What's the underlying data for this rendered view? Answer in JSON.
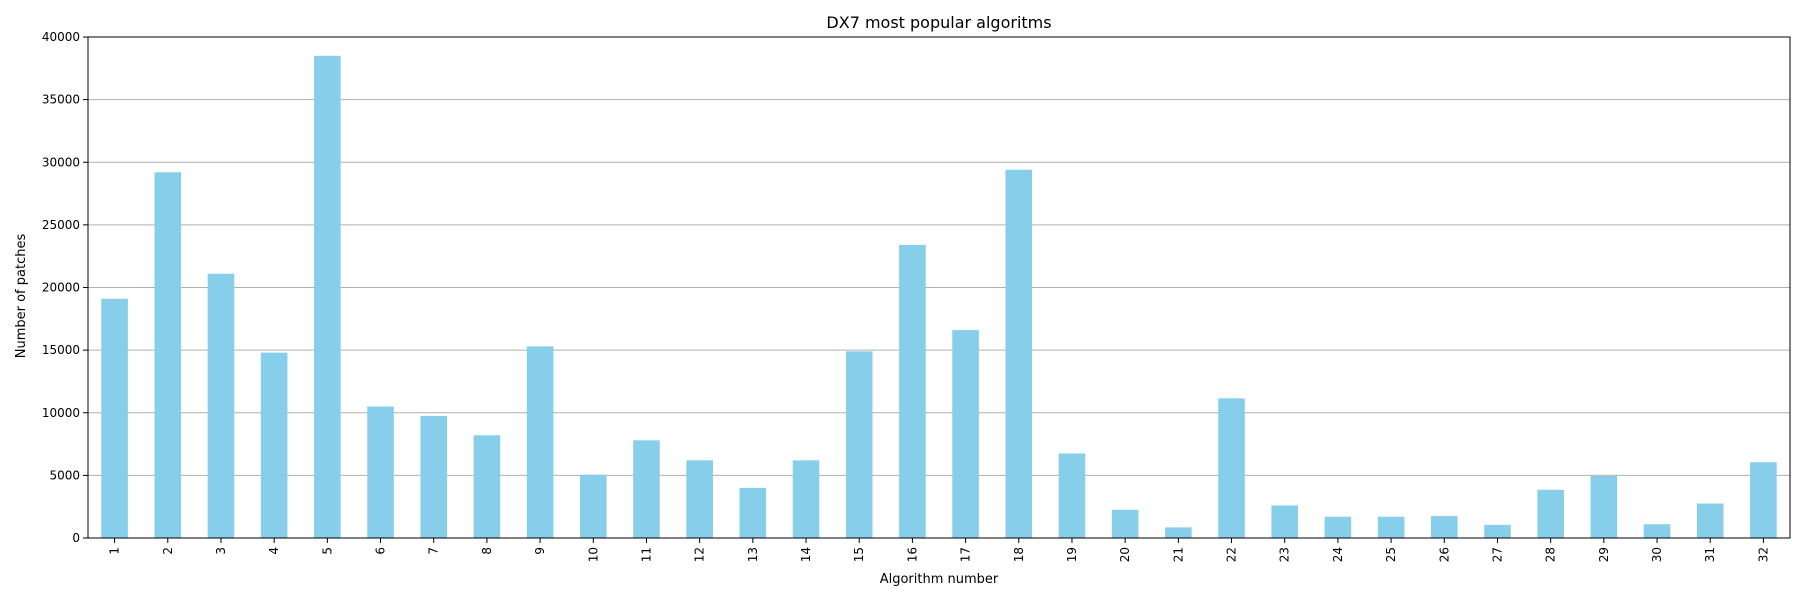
{
  "chart_data": {
    "type": "bar",
    "title": "DX7 most popular algoritms",
    "xlabel": "Algorithm number",
    "ylabel": "Number of patches",
    "categories": [
      "1",
      "2",
      "3",
      "4",
      "5",
      "6",
      "7",
      "8",
      "9",
      "10",
      "11",
      "12",
      "13",
      "14",
      "15",
      "16",
      "17",
      "18",
      "19",
      "20",
      "21",
      "22",
      "23",
      "24",
      "25",
      "26",
      "27",
      "28",
      "29",
      "30",
      "31",
      "32"
    ],
    "values": [
      19100,
      29200,
      21100,
      14800,
      38500,
      10500,
      9750,
      8200,
      15300,
      5050,
      7800,
      6200,
      4000,
      6200,
      14900,
      23400,
      16600,
      29400,
      6750,
      2250,
      850,
      11150,
      2600,
      1700,
      1700,
      1750,
      1050,
      3850,
      4950,
      1100,
      2750,
      6050
    ],
    "ylim": [
      0,
      40000
    ],
    "yticks": [
      0,
      5000,
      10000,
      15000,
      20000,
      25000,
      30000,
      35000,
      40000
    ],
    "grid": "y",
    "bar_color": "#87ceeb",
    "grid_color": "#b0b0b0"
  }
}
